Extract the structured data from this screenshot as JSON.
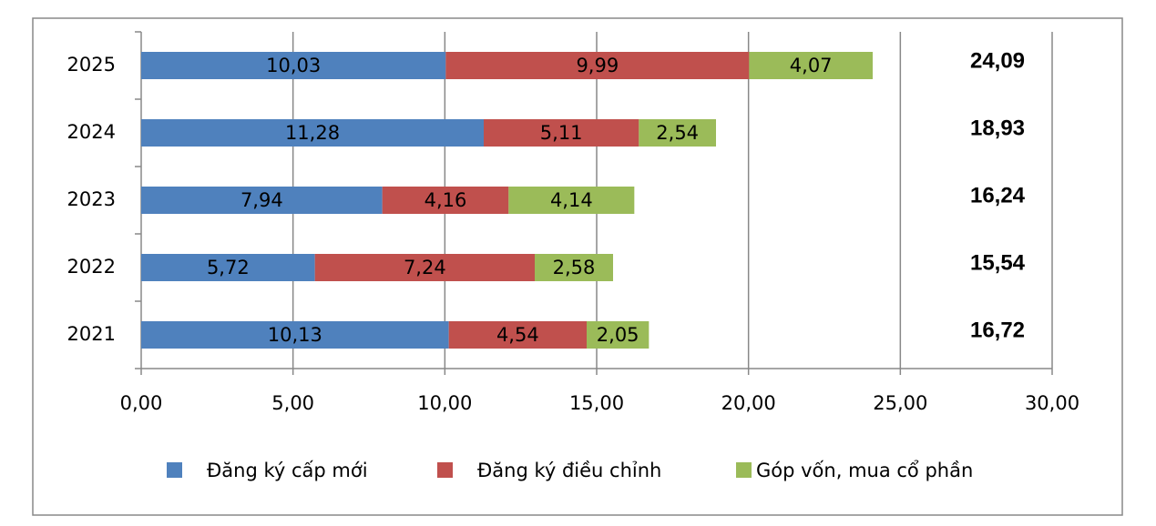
{
  "chart_data": {
    "type": "stacked-bar-horizontal",
    "categories": [
      "2025",
      "2024",
      "2023",
      "2022",
      "2021"
    ],
    "series": [
      {
        "name": "Đăng ký cấp mới",
        "color": "#4f81bd",
        "values": [
          10.03,
          11.28,
          7.94,
          5.72,
          10.13
        ],
        "value_labels": [
          "10,03",
          "11,28",
          "7,94",
          "5,72",
          "10,13"
        ]
      },
      {
        "name": "Đăng ký điều chỉnh",
        "color": "#c0504d",
        "values": [
          9.99,
          5.11,
          4.16,
          7.24,
          4.54
        ],
        "value_labels": [
          "9,99",
          "5,11",
          "4,16",
          "7,24",
          "4,54"
        ]
      },
      {
        "name": "Góp vốn, mua cổ phần",
        "color": "#9bbb59",
        "values": [
          4.07,
          2.54,
          4.14,
          2.58,
          2.05
        ],
        "value_labels": [
          "4,07",
          "2,54",
          "4,14",
          "2,58",
          "2,05"
        ]
      }
    ],
    "totals": [
      24.09,
      18.93,
      16.24,
      15.54,
      16.72
    ],
    "total_labels": [
      "24,09",
      "18,93",
      "16,24",
      "15,54",
      "16,72"
    ],
    "xlim": [
      0,
      30
    ],
    "xticks": [
      {
        "value": 0,
        "label": "0,00"
      },
      {
        "value": 5,
        "label": "5,00"
      },
      {
        "value": 10,
        "label": "10,00"
      },
      {
        "value": 15,
        "label": "15,00"
      },
      {
        "value": 20,
        "label": "20,00"
      },
      {
        "value": 25,
        "label": "25,00"
      },
      {
        "value": 30,
        "label": "30,00"
      }
    ],
    "grid": true
  }
}
